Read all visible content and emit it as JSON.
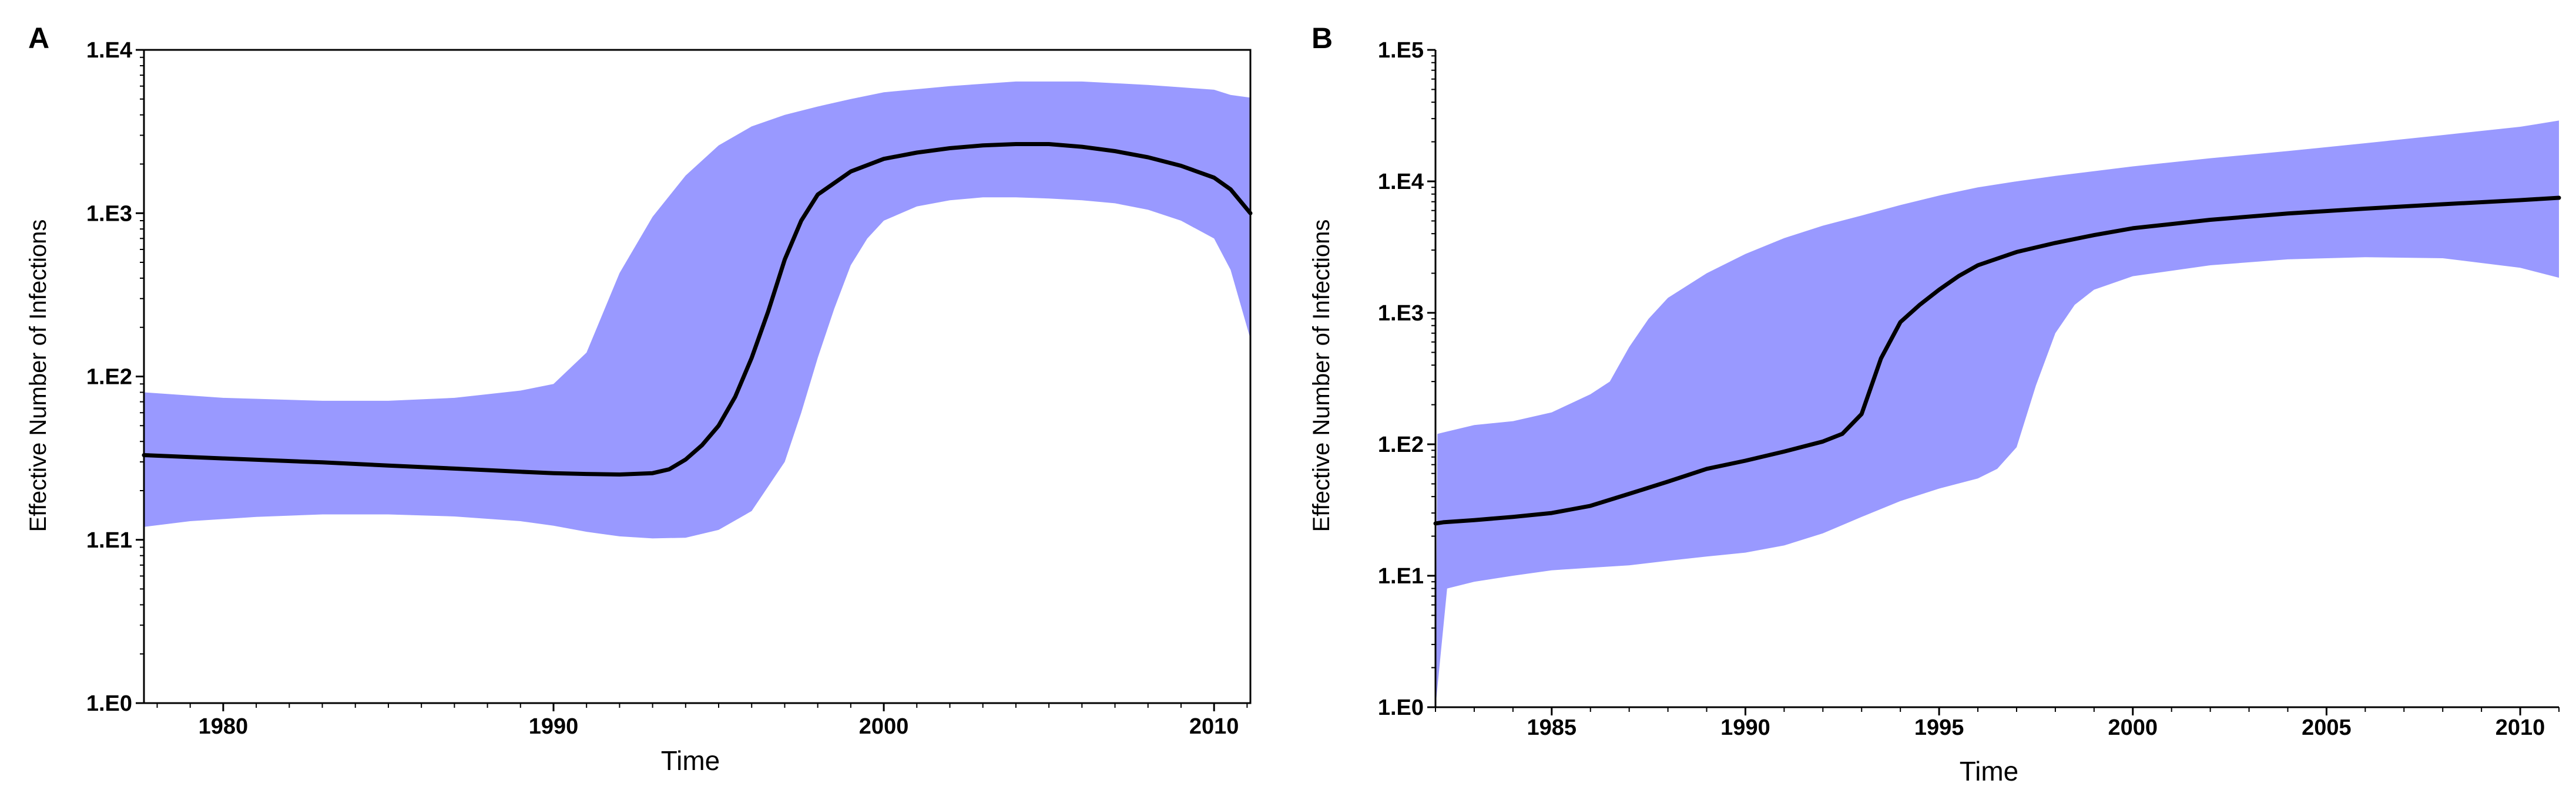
{
  "chart_data": [
    {
      "panel": "A",
      "type": "area",
      "title": "",
      "xlabel": "Time",
      "ylabel": "Effective  Number  of Infections",
      "yscale": "log10",
      "xlim": [
        1977.6,
        2011.1
      ],
      "ylim": [
        1,
        10000
      ],
      "xticks": [
        1980,
        1990,
        2000,
        2010
      ],
      "xtick_labels": [
        "1980",
        "1990",
        "2000",
        "2010"
      ],
      "yticks": [
        1,
        10,
        100,
        1000,
        10000
      ],
      "ytick_labels": [
        "1.E0",
        "1.E1",
        "1.E2",
        "1.E3",
        "1.E4"
      ],
      "band_color": "#9999ff",
      "line_color": "#000000",
      "series": [
        {
          "name": "upper",
          "x": [
            1977.6,
            1980,
            1983,
            1985,
            1987,
            1989,
            1990,
            1991,
            1992,
            1993,
            1994,
            1995,
            1996,
            1997,
            1998,
            1999,
            2000,
            2002,
            2004,
            2006,
            2008,
            2009,
            2010,
            2010.5,
            2011.1
          ],
          "values": [
            80,
            74,
            71,
            71,
            74,
            82,
            90,
            140,
            430,
            950,
            1700,
            2600,
            3400,
            4000,
            4500,
            5000,
            5500,
            6000,
            6400,
            6400,
            6100,
            5900,
            5700,
            5300,
            5100
          ]
        },
        {
          "name": "median",
          "x": [
            1977.6,
            1980,
            1983,
            1985,
            1987,
            1989,
            1990,
            1991,
            1992,
            1993,
            1993.5,
            1994,
            1994.5,
            1995,
            1995.5,
            1996,
            1996.5,
            1997,
            1997.5,
            1998,
            1999,
            2000,
            2001,
            2002,
            2003,
            2004,
            2005,
            2006,
            2007,
            2008,
            2009,
            2010,
            2010.5,
            2011.1
          ],
          "values": [
            33,
            31.5,
            29.8,
            28.5,
            27.3,
            26.1,
            25.6,
            25.3,
            25.1,
            25.6,
            27,
            31,
            38,
            50,
            75,
            130,
            250,
            520,
            900,
            1300,
            1800,
            2150,
            2350,
            2500,
            2600,
            2650,
            2650,
            2550,
            2400,
            2200,
            1950,
            1650,
            1400,
            1000
          ]
        },
        {
          "name": "lower",
          "x": [
            1977.6,
            1979,
            1981,
            1983,
            1985,
            1987,
            1989,
            1990,
            1991,
            1992,
            1993,
            1994,
            1995,
            1996,
            1997,
            1997.5,
            1998,
            1998.5,
            1999,
            1999.5,
            2000,
            2001,
            2002,
            2003,
            2004,
            2005,
            2006,
            2007,
            2008,
            2009,
            2010,
            2010.5,
            2011.1
          ],
          "values": [
            12,
            13,
            13.8,
            14.3,
            14.3,
            13.9,
            13,
            12.2,
            11.2,
            10.5,
            10.2,
            10.3,
            11.5,
            15,
            30,
            60,
            130,
            260,
            480,
            700,
            900,
            1100,
            1200,
            1250,
            1250,
            1230,
            1200,
            1150,
            1050,
            900,
            700,
            450,
            170
          ]
        }
      ]
    },
    {
      "panel": "B",
      "type": "area",
      "title": "",
      "xlabel": "Time",
      "ylabel": "Effective  Number  of Infections",
      "yscale": "log10",
      "xlim": [
        1982.0,
        2011.0
      ],
      "ylim": [
        1,
        100000
      ],
      "xticks": [
        1985,
        1990,
        1995,
        2000,
        2005,
        2010
      ],
      "xtick_labels": [
        "1985",
        "1990",
        "1995",
        "2000",
        "2005",
        "2010"
      ],
      "yticks": [
        1,
        10,
        100,
        1000,
        10000,
        100000
      ],
      "ytick_labels": [
        "1.E0",
        "1.E1",
        "1.E2",
        "1.E3",
        "1.E4",
        "1.E5"
      ],
      "band_color": "#9999ff",
      "line_color": "#000000",
      "series": [
        {
          "name": "upper",
          "x": [
            1982.0,
            1982.05,
            1982.3,
            1983,
            1984,
            1985,
            1986,
            1986.5,
            1987,
            1987.5,
            1988,
            1989,
            1990,
            1991,
            1992,
            1993,
            1994,
            1995,
            1996,
            1997,
            1998,
            2000,
            2002,
            2004,
            2006,
            2008,
            2010,
            2011.0
          ],
          "values": [
            1,
            120,
            125,
            140,
            150,
            175,
            240,
            300,
            550,
            900,
            1300,
            2000,
            2800,
            3700,
            4600,
            5500,
            6600,
            7800,
            9000,
            10000,
            11000,
            13000,
            15000,
            17000,
            19500,
            22500,
            26000,
            29000
          ]
        },
        {
          "name": "median",
          "x": [
            1982.0,
            1982.2,
            1983,
            1984,
            1985,
            1986,
            1987,
            1988,
            1989,
            1990,
            1991,
            1992,
            1992.5,
            1993,
            1993.5,
            1994,
            1994.5,
            1995,
            1995.5,
            1996,
            1997,
            1998,
            1999,
            2000,
            2002,
            2004,
            2006,
            2008,
            2010,
            2011.0
          ],
          "values": [
            25,
            25.5,
            26.5,
            28,
            30,
            34,
            42,
            52,
            65,
            75,
            88,
            105,
            120,
            170,
            450,
            850,
            1150,
            1500,
            1900,
            2300,
            2900,
            3400,
            3900,
            4400,
            5100,
            5700,
            6200,
            6700,
            7200,
            7500
          ]
        },
        {
          "name": "lower",
          "x": [
            1982.0,
            1982.3,
            1983,
            1984,
            1985,
            1986,
            1987,
            1988,
            1989,
            1990,
            1991,
            1992,
            1993,
            1994,
            1995,
            1996,
            1996.5,
            1997,
            1997.5,
            1998,
            1998.5,
            1999,
            2000,
            2002,
            2004,
            2006,
            2008,
            2010,
            2011.0
          ],
          "values": [
            1,
            8,
            9,
            10,
            11,
            11.5,
            12,
            13,
            14,
            15,
            17,
            21,
            28,
            37,
            46,
            55,
            65,
            95,
            280,
            700,
            1150,
            1500,
            1900,
            2300,
            2550,
            2650,
            2600,
            2200,
            1850
          ]
        }
      ]
    }
  ]
}
